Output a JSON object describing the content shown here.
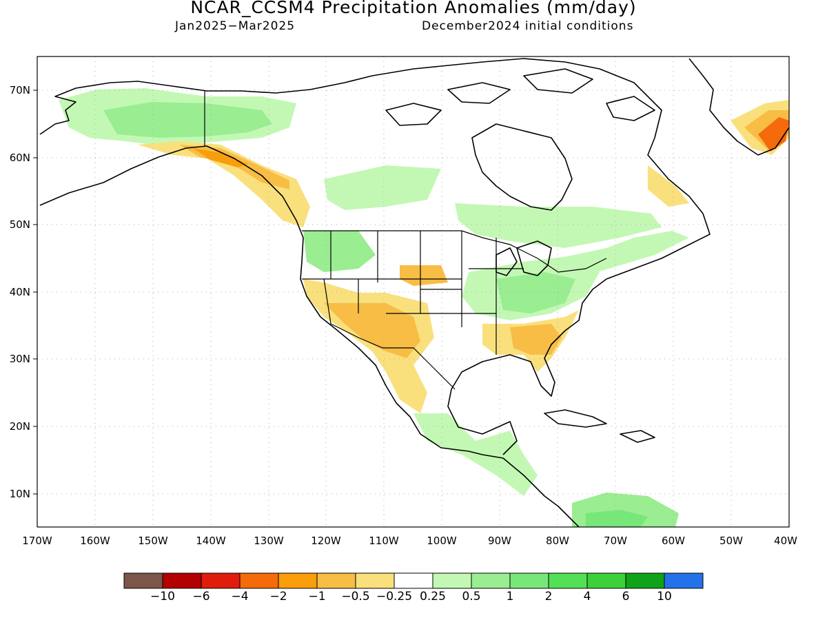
{
  "title": "NCAR_CCSM4 Precipitation Anomalies (mm/day)",
  "subtitle_left": "Jan2025−Mar2025",
  "subtitle_right": "December2024 initial conditions",
  "map": {
    "lat_ticks": [
      "70N",
      "60N",
      "50N",
      "40N",
      "30N",
      "20N",
      "10N"
    ],
    "lon_ticks": [
      "170W",
      "160W",
      "150W",
      "140W",
      "130W",
      "120W",
      "110W",
      "100W",
      "90W",
      "80W",
      "70W",
      "60W",
      "50W",
      "40W"
    ],
    "lon_range": [
      -170,
      -40
    ],
    "lat_range": [
      5,
      75
    ],
    "grid": true
  },
  "colorbar": {
    "colors": [
      "#7b5649",
      "#b30000",
      "#e01c0c",
      "#f56a0b",
      "#f99e0a",
      "#f7bd45",
      "#f9e07d",
      "#ffffff",
      "#c3f8b4",
      "#9aed91",
      "#78e77a",
      "#53e056",
      "#3ed03a",
      "#10a31a",
      "#2372e9"
    ],
    "labels": [
      "−10",
      "−6",
      "−4",
      "−2",
      "−1",
      "−0.5",
      "−0.25",
      "0.25",
      "0.5",
      "1",
      "2",
      "4",
      "6",
      "10"
    ]
  },
  "colors": {
    "land_outline": "#000000",
    "grid": "#aaaaaa"
  }
}
